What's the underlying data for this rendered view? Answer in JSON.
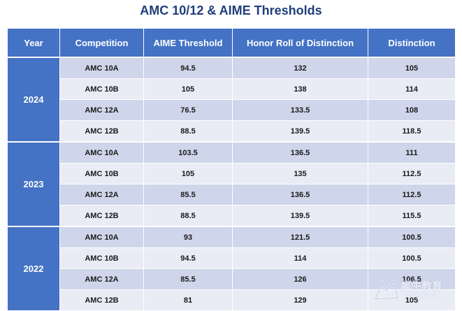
{
  "title": "AMC 10/12 & AIME Thresholds",
  "table": {
    "headers": [
      "Year",
      "Competition",
      "AIME Threshold",
      "Honor Roll of Distinction",
      "Distinction"
    ],
    "groups": [
      {
        "year": "2024",
        "rows": [
          [
            "AMC 10A",
            "94.5",
            "132",
            "105"
          ],
          [
            "AMC 10B",
            "105",
            "138",
            "114"
          ],
          [
            "AMC 12A",
            "76.5",
            "133.5",
            "108"
          ],
          [
            "AMC 12B",
            "88.5",
            "139.5",
            "118.5"
          ]
        ]
      },
      {
        "year": "2023",
        "rows": [
          [
            "AMC 10A",
            "103.5",
            "136.5",
            "111"
          ],
          [
            "AMC 10B",
            "105",
            "135",
            "112.5"
          ],
          [
            "AMC 12A",
            "85.5",
            "136.5",
            "112.5"
          ],
          [
            "AMC 12B",
            "88.5",
            "139.5",
            "115.5"
          ]
        ]
      },
      {
        "year": "2022",
        "rows": [
          [
            "AMC 10A",
            "93",
            "121.5",
            "100.5"
          ],
          [
            "AMC 10B",
            "94.5",
            "114",
            "100.5"
          ],
          [
            "AMC 12A",
            "85.5",
            "126",
            "106.5"
          ],
          [
            "AMC 12B",
            "81",
            "129",
            "105"
          ]
        ]
      }
    ]
  },
  "watermark": {
    "text": "犀牛教育",
    "sub": "-NEWS"
  }
}
